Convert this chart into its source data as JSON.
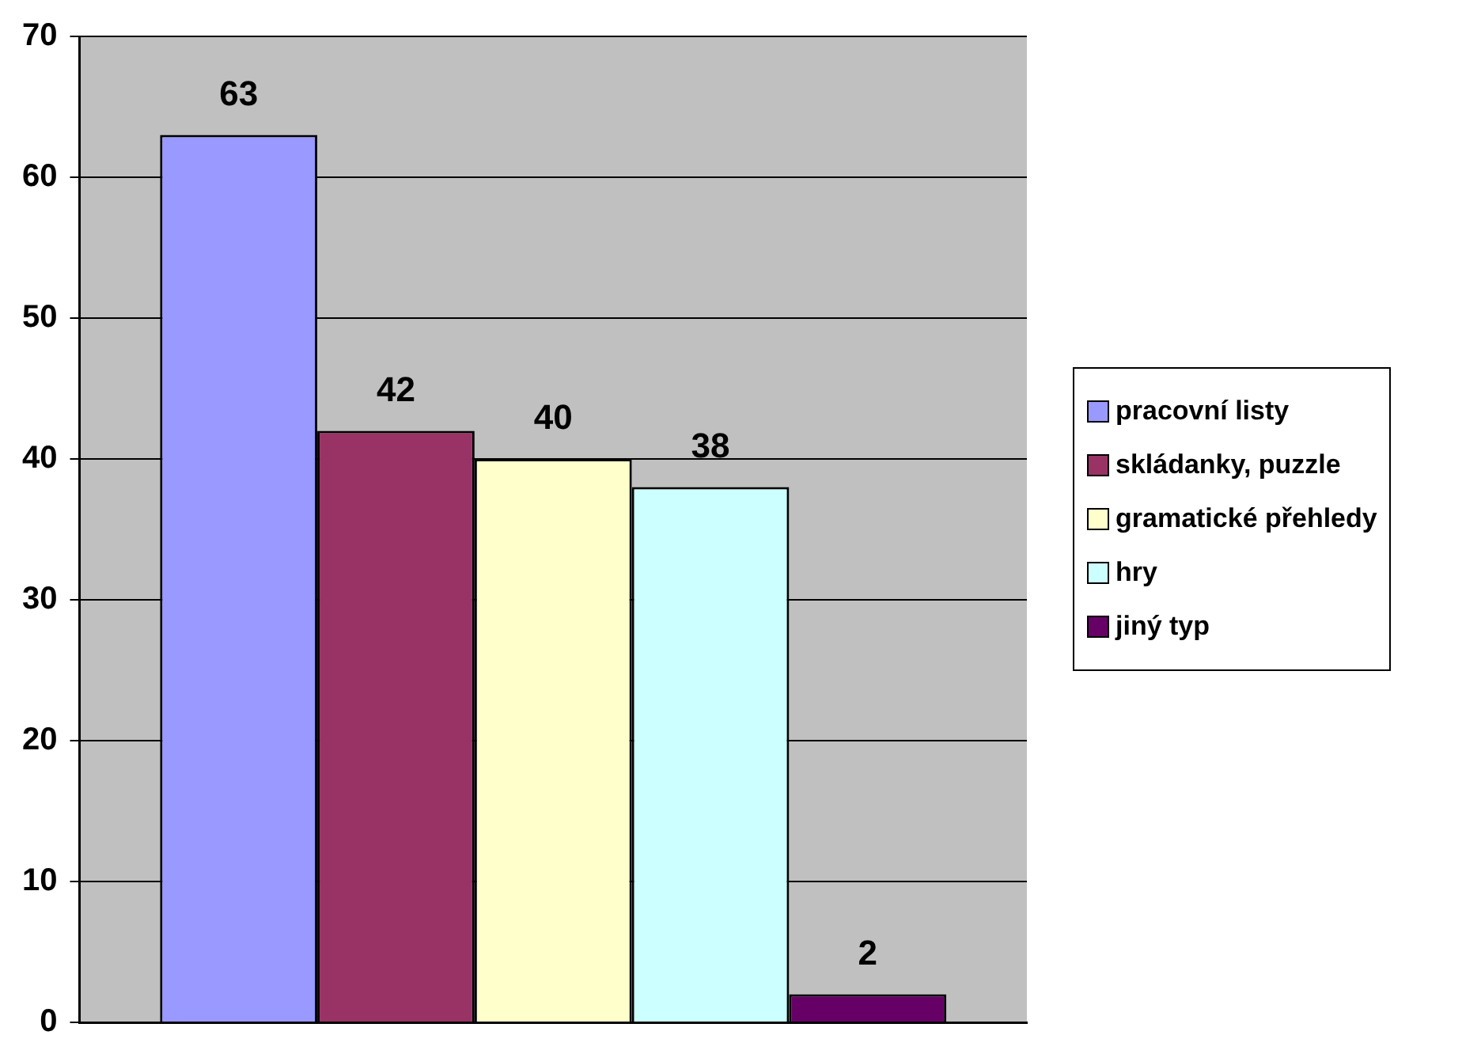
{
  "chart_data": {
    "type": "bar",
    "categories": [
      null
    ],
    "series": [
      {
        "name": "pracovní listy",
        "color": "#9999ff",
        "values": [
          63
        ]
      },
      {
        "name": "skládanky, puzzle",
        "color": "#993366",
        "values": [
          42
        ]
      },
      {
        "name": "gramatické přehledy",
        "color": "#ffffcc",
        "values": [
          40
        ]
      },
      {
        "name": "hry",
        "color": "#ccffff",
        "values": [
          38
        ]
      },
      {
        "name": "jiný typ",
        "color": "#660066",
        "values": [
          2
        ]
      }
    ],
    "ylim": [
      0,
      70
    ],
    "yticks": [
      0,
      10,
      20,
      30,
      40,
      50,
      60,
      70
    ],
    "grid": "y",
    "legend": "right",
    "data_labels": true
  }
}
